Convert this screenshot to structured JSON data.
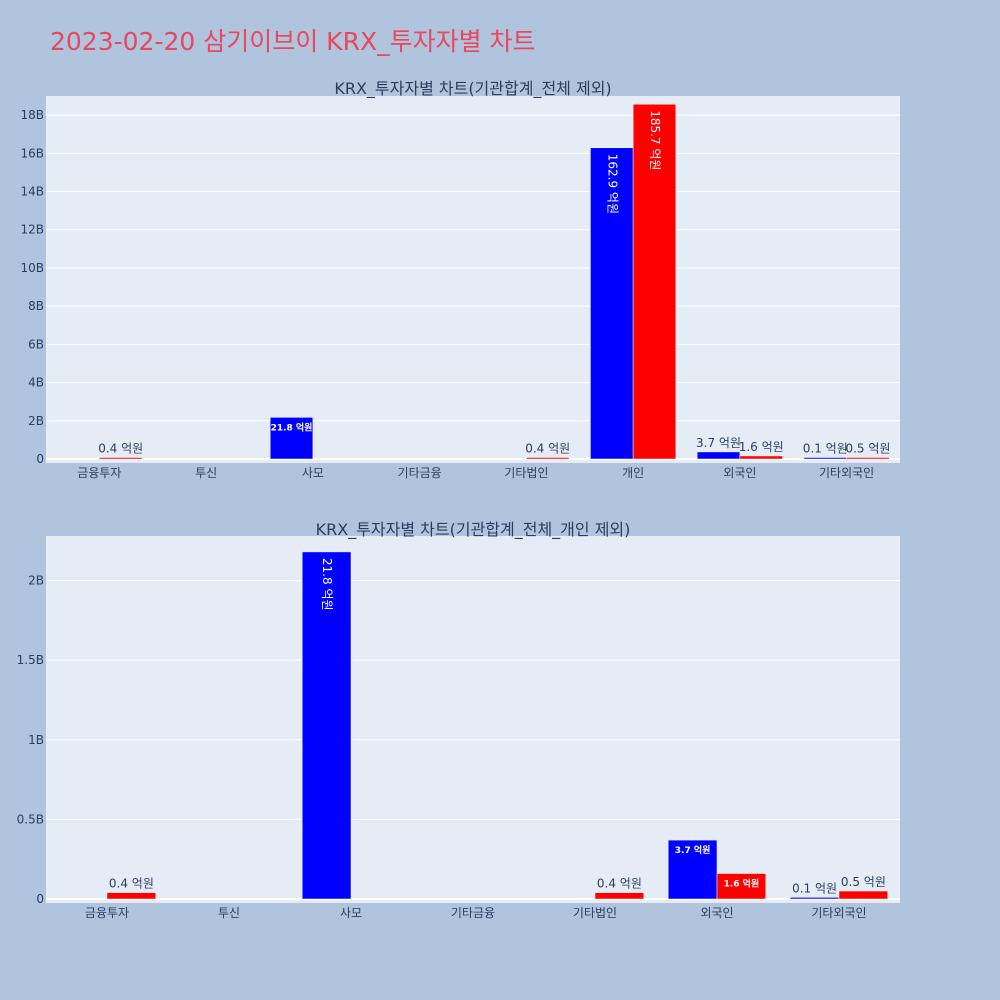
{
  "page_title": "2023-02-20 삼기이브이 KRX_투자자별 차트",
  "colors": {
    "background": "#b0c4de",
    "plot_background": "#e5ecf6",
    "title": "#e8475c",
    "text": "#2a3f5f",
    "buy": "#0000ff",
    "sell": "#ff0000"
  },
  "chart_data": [
    {
      "type": "bar",
      "title": "KRX_투자자별 차트(기관합계_전체 제외)",
      "categories": [
        "금융투자",
        "투신",
        "사모",
        "기타금융",
        "기타법인",
        "개인",
        "외국인",
        "기타외국인"
      ],
      "series": [
        {
          "color": "#0000ff",
          "values": [
            0,
            0,
            2180000000,
            0,
            0,
            16290000000,
            370000000,
            10000000
          ],
          "labels": [
            "",
            "",
            "21.8 억원",
            "",
            "",
            "162.9 억원",
            "3.7 억원",
            "0.1 억원"
          ]
        },
        {
          "color": "#ff0000",
          "values": [
            40000000,
            0,
            0,
            0,
            40000000,
            18570000000,
            160000000,
            50000000
          ],
          "labels": [
            "0.4 억원",
            "",
            "",
            "",
            "0.4 억원",
            "185.7 억원",
            "1.6 억원",
            "0.5 억원"
          ]
        }
      ],
      "ylim": [
        0,
        19000000000
      ],
      "yticks": [
        0,
        2000000000,
        4000000000,
        6000000000,
        8000000000,
        10000000000,
        12000000000,
        14000000000,
        16000000000,
        18000000000
      ],
      "ytick_labels": [
        "0",
        "2B",
        "4B",
        "6B",
        "8B",
        "10B",
        "12B",
        "14B",
        "16B",
        "18B"
      ],
      "grid": true
    },
    {
      "type": "bar",
      "title": "KRX_투자자별 차트(기관합계_전체_개인 제외)",
      "categories": [
        "금융투자",
        "투신",
        "사모",
        "기타금융",
        "기타법인",
        "외국인",
        "기타외국인"
      ],
      "series": [
        {
          "color": "#0000ff",
          "values": [
            0,
            0,
            2180000000,
            0,
            0,
            370000000,
            10000000
          ],
          "labels": [
            "",
            "",
            "21.8 억원",
            "",
            "",
            "3.7 억원",
            "0.1 억원"
          ]
        },
        {
          "color": "#ff0000",
          "values": [
            40000000,
            0,
            0,
            0,
            40000000,
            160000000,
            50000000
          ],
          "labels": [
            "0.4 억원",
            "",
            "",
            "",
            "0.4 억원",
            "1.6 억원",
            "0.5 억원"
          ]
        }
      ],
      "ylim": [
        0,
        2280000000
      ],
      "yticks": [
        0,
        500000000,
        1000000000,
        1500000000,
        2000000000
      ],
      "ytick_labels": [
        "0",
        "0.5B",
        "1B",
        "1.5B",
        "2B"
      ],
      "grid": true
    }
  ]
}
